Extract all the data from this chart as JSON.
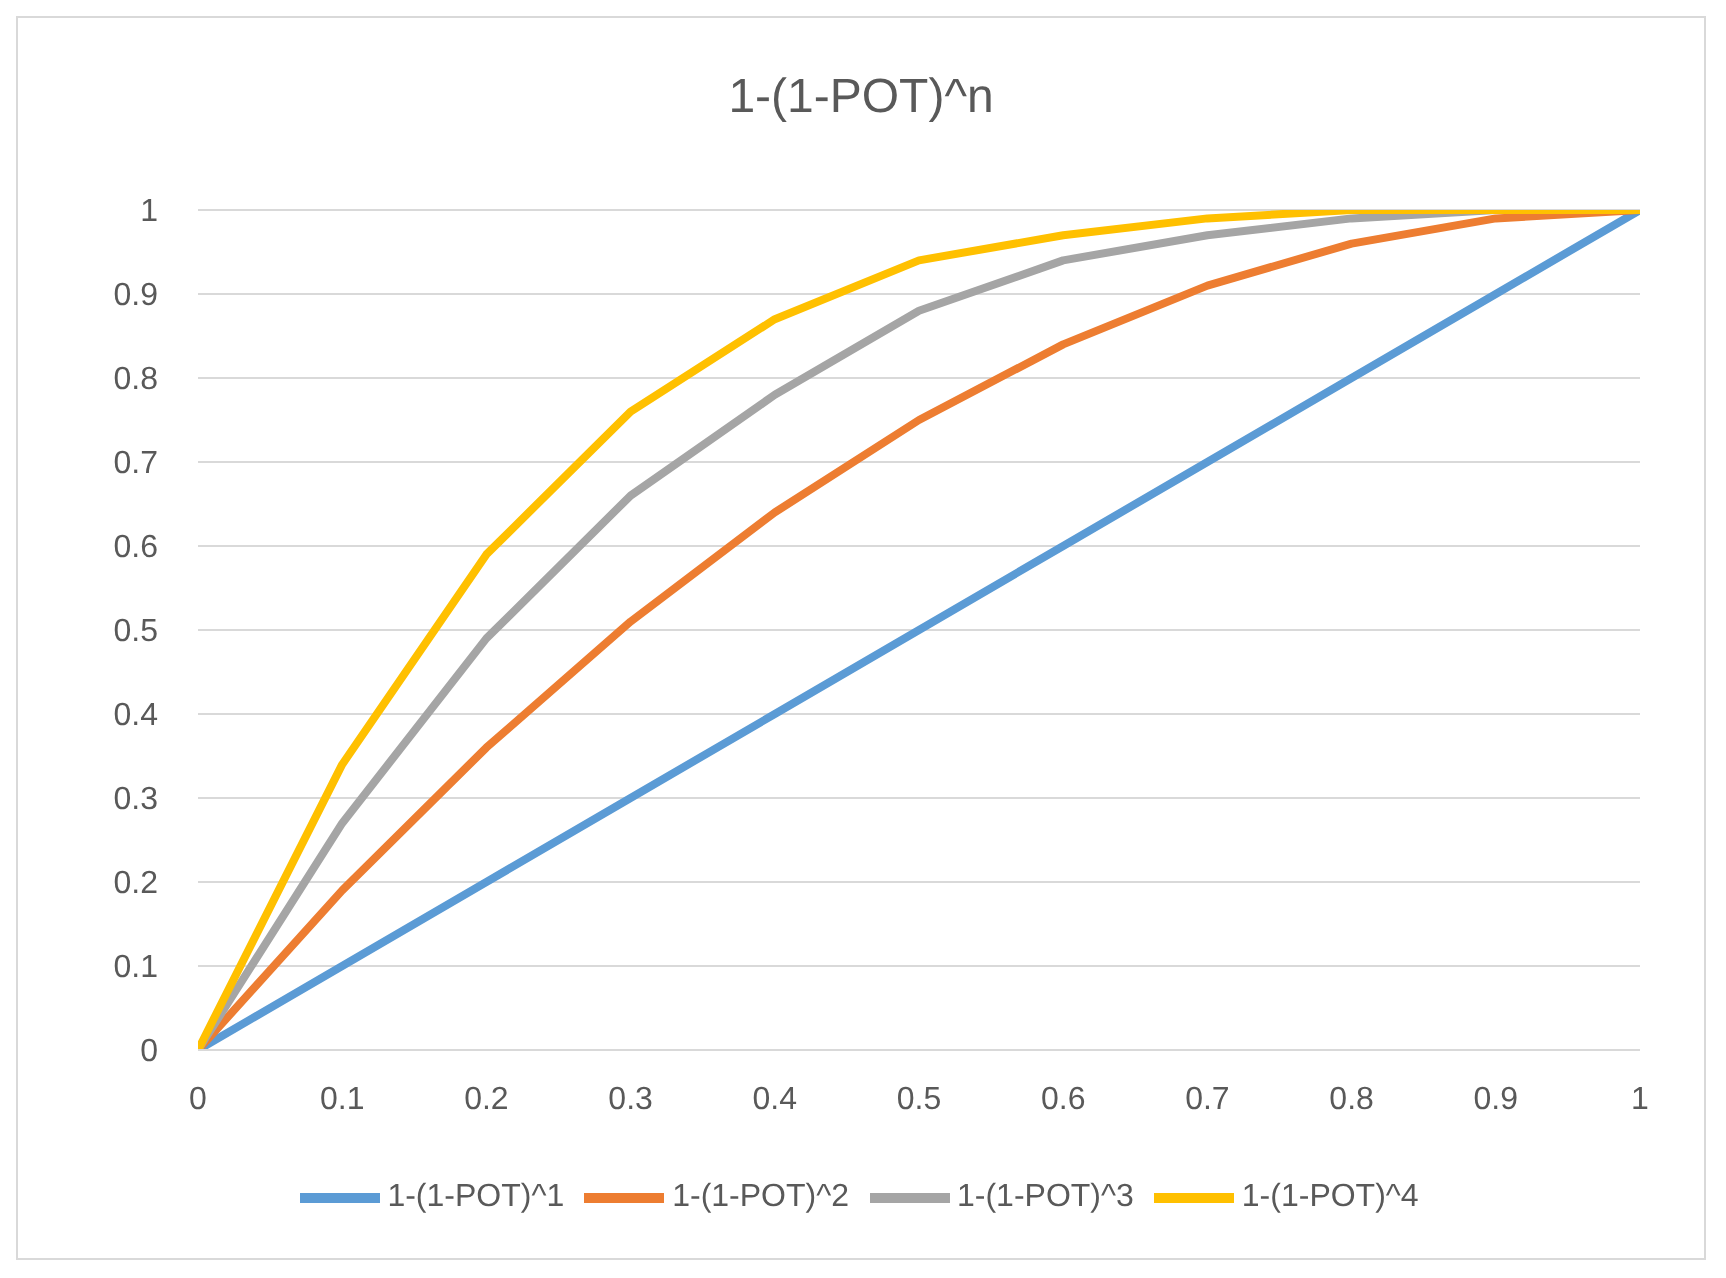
{
  "chart_data": {
    "type": "line",
    "title": "1-(1-POT)^n",
    "categories": [
      "0",
      "0.1",
      "0.2",
      "0.3",
      "0.4",
      "0.5",
      "0.6",
      "0.7",
      "0.8",
      "0.9",
      "1"
    ],
    "series": [
      {
        "name": "1-(1-POT)^1",
        "color": "#5b9bd5",
        "values": [
          0,
          0.1,
          0.2,
          0.3,
          0.4,
          0.5,
          0.6,
          0.7,
          0.8,
          0.9,
          1
        ]
      },
      {
        "name": "1-(1-POT)^2",
        "color": "#ed7d31",
        "values": [
          0,
          0.19,
          0.36,
          0.51,
          0.64,
          0.75,
          0.84,
          0.91,
          0.96,
          0.99,
          1
        ]
      },
      {
        "name": "1-(1-POT)^3",
        "color": "#a5a5a5",
        "values": [
          0,
          0.27,
          0.49,
          0.66,
          0.78,
          0.88,
          0.94,
          0.97,
          0.99,
          1,
          1
        ]
      },
      {
        "name": "1-(1-POT)^4",
        "color": "#ffc000",
        "values": [
          0,
          0.34,
          0.59,
          0.76,
          0.87,
          0.94,
          0.97,
          0.99,
          1,
          1,
          1
        ]
      }
    ],
    "ylim": [
      0,
      1
    ],
    "yticks": [
      0,
      0.1,
      0.2,
      0.3,
      0.4,
      0.5,
      0.6,
      0.7,
      0.8,
      0.9,
      1
    ],
    "grid": "y",
    "legend": "bottom",
    "marker": "none",
    "line_style": "solid"
  }
}
